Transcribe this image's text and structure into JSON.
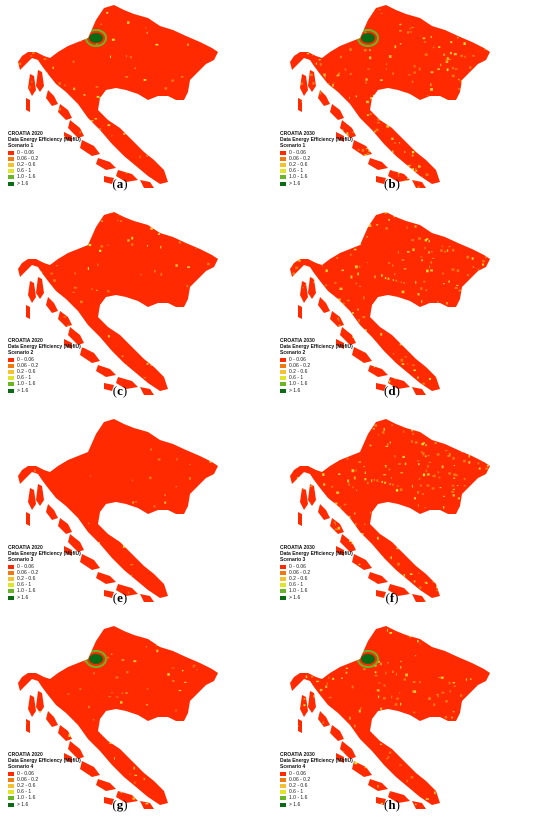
{
  "legend_classes": [
    {
      "label": "0 - 0.06",
      "color": "#ff2a00"
    },
    {
      "label": "0.06 - 0.2",
      "color": "#f07a12"
    },
    {
      "label": "0.2 - 0.6",
      "color": "#f2c230"
    },
    {
      "label": "0.6 - 1",
      "color": "#dfe62a"
    },
    {
      "label": "1.0 - 1.6",
      "color": "#69b526"
    },
    {
      "label": "> 1.6",
      "color": "#0a6b14"
    }
  ],
  "legend_subtitle": "Data Energy Efficiency (MbfiU)",
  "panels": [
    {
      "letter": "a",
      "country_year": "CROATIA 2020",
      "scenario": "Scenario 1",
      "yellow": 0.1,
      "green_blob": true
    },
    {
      "letter": "b",
      "country_year": "CROATIA 2030",
      "scenario": "Scenario 1",
      "yellow": 0.32,
      "green_blob": true
    },
    {
      "letter": "c",
      "country_year": "CROATIA 2020",
      "scenario": "Scenario 2",
      "yellow": 0.09,
      "green_blob": false
    },
    {
      "letter": "d",
      "country_year": "CROATIA 2030",
      "scenario": "Scenario 2",
      "yellow": 0.3,
      "green_blob": false
    },
    {
      "letter": "e",
      "country_year": "CROATIA 2020",
      "scenario": "Scenario 3",
      "yellow": 0.01,
      "green_blob": false
    },
    {
      "letter": "f",
      "country_year": "CROATIA 2030",
      "scenario": "Scenario 3",
      "yellow": 0.38,
      "green_blob": false
    },
    {
      "letter": "g",
      "country_year": "CROATIA 2020",
      "scenario": "Scenario 4",
      "yellow": 0.12,
      "green_blob": true
    },
    {
      "letter": "h",
      "country_year": "CROATIA 2030",
      "scenario": "Scenario 4",
      "yellow": 0.24,
      "green_blob": true
    }
  ]
}
